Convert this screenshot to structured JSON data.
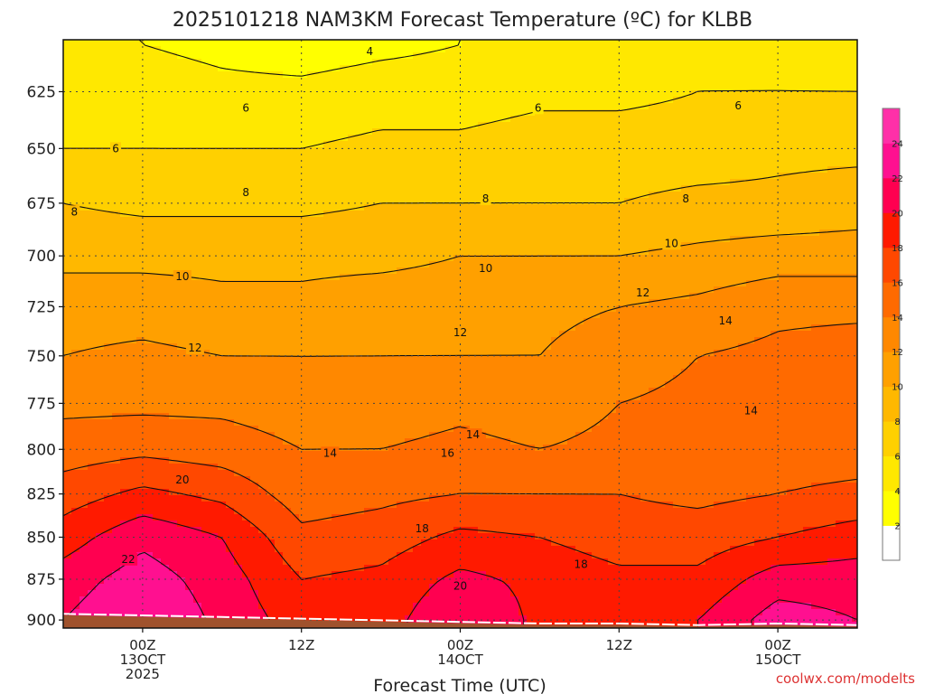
{
  "chart_data": {
    "type": "heatmap",
    "title": "2025101218 NAM3KM Forecast Temperature (ºC) for KLBB",
    "xlabel": "Forecast Time (UTC)",
    "ylabel": "",
    "credit": "coolwx.com/modelts",
    "y_axis": {
      "scale": "pressure",
      "inverted": true,
      "range": [
        905,
        603
      ]
    },
    "x_range_hours": [
      -5,
      45
    ],
    "y_ticks": [
      {
        "value": 625,
        "label": "625"
      },
      {
        "value": 650,
        "label": "650"
      },
      {
        "value": 675,
        "label": "675"
      },
      {
        "value": 700,
        "label": "700"
      },
      {
        "value": 725,
        "label": "725"
      },
      {
        "value": 750,
        "label": "750"
      },
      {
        "value": 775,
        "label": "775"
      },
      {
        "value": 800,
        "label": "800"
      },
      {
        "value": 825,
        "label": "825"
      },
      {
        "value": 850,
        "label": "850"
      },
      {
        "value": 875,
        "label": "875"
      },
      {
        "value": 900,
        "label": "900"
      }
    ],
    "x_ticks": [
      {
        "value": 0,
        "lines": [
          "00Z",
          "13OCT",
          "2025"
        ]
      },
      {
        "value": 10,
        "lines": [
          "12Z"
        ]
      },
      {
        "value": 20,
        "lines": [
          "00Z",
          "14OCT"
        ]
      },
      {
        "value": 30,
        "lines": [
          "12Z"
        ]
      },
      {
        "value": 40,
        "lines": [
          "00Z",
          "15OCT"
        ]
      }
    ],
    "grid": true,
    "colorbar": {
      "levels": [
        2,
        4,
        6,
        8,
        10,
        12,
        14,
        16,
        18,
        20,
        22,
        24
      ],
      "labels": [
        "2",
        "4",
        "6",
        "8",
        "10",
        "12",
        "14",
        "16",
        "18",
        "20",
        "22",
        "24"
      ],
      "colors": [
        "#ffffff",
        "#ffff00",
        "#ffe800",
        "#ffd000",
        "#ffb800",
        "#ffa000",
        "#ff8800",
        "#ff6a00",
        "#ff4800",
        "#ff1a00",
        "#ff0050",
        "#ff1090",
        "#ff30a8"
      ]
    },
    "temperature_profile": {
      "times": [
        -5,
        0,
        5,
        10,
        15,
        20,
        25,
        30,
        35,
        40,
        45
      ],
      "pressures": [
        605,
        625,
        650,
        675,
        700,
        725,
        750,
        775,
        800,
        825,
        850,
        875,
        900
      ],
      "values": [
        [
          4.0,
          4.0,
          3.5,
          3.0,
          3.5,
          4.0,
          4.5,
          5.0,
          5.5,
          5.5,
          5.0
        ],
        [
          5.0,
          5.0,
          4.5,
          4.5,
          5.0,
          5.0,
          5.5,
          5.5,
          6.0,
          6.0,
          6.0
        ],
        [
          6.0,
          6.0,
          6.0,
          6.0,
          6.5,
          6.5,
          7.0,
          7.0,
          7.0,
          7.5,
          7.5
        ],
        [
          8.0,
          7.5,
          7.5,
          7.5,
          8.0,
          8.0,
          8.0,
          8.0,
          8.5,
          8.5,
          9.0
        ],
        [
          9.5,
          9.5,
          9.5,
          9.5,
          9.5,
          10.0,
          10.0,
          10.0,
          10.5,
          11.0,
          11.0
        ],
        [
          11.0,
          11.0,
          10.5,
          10.5,
          11.0,
          11.0,
          11.5,
          12.0,
          12.5,
          13.5,
          13.5
        ],
        [
          12.0,
          12.5,
          12.0,
          12.0,
          12.0,
          12.0,
          12.0,
          13.0,
          14.0,
          14.5,
          15.0
        ],
        [
          13.5,
          13.5,
          13.5,
          13.0,
          13.0,
          13.5,
          13.0,
          14.0,
          14.5,
          15.0,
          15.5
        ],
        [
          15.0,
          15.5,
          15.0,
          14.0,
          14.0,
          14.5,
          14.0,
          14.5,
          15.0,
          15.0,
          15.0
        ],
        [
          17.0,
          18.5,
          17.5,
          15.0,
          15.5,
          16.0,
          16.0,
          16.0,
          15.5,
          16.0,
          16.5
        ],
        [
          19.0,
          21.5,
          20.0,
          16.5,
          17.0,
          18.5,
          18.0,
          17.0,
          17.0,
          18.0,
          19.0
        ],
        [
          21.0,
          23.0,
          21.0,
          18.0,
          18.5,
          20.5,
          19.5,
          18.5,
          18.5,
          21.0,
          21.0
        ],
        [
          22.0,
          24.0,
          21.5,
          19.0,
          19.0,
          22.0,
          19.5,
          19.0,
          20.0,
          23.0,
          22.0
        ]
      ]
    },
    "terrain_surface": {
      "times": [
        -5,
        0,
        5,
        10,
        15,
        20,
        25,
        30,
        35,
        40,
        45
      ],
      "pressures": [
        897,
        898,
        899,
        900,
        901,
        902,
        903,
        903,
        904,
        903,
        904
      ]
    },
    "contour_labels": [
      {
        "text": "4",
        "t": 14.3,
        "p": 608
      },
      {
        "text": "6",
        "t": 6.5,
        "p": 632
      },
      {
        "text": "6",
        "t": -1.7,
        "p": 650
      },
      {
        "text": "6",
        "t": 24.9,
        "p": 632
      },
      {
        "text": "6",
        "t": 37.5,
        "p": 631
      },
      {
        "text": "8",
        "t": 6.5,
        "p": 670
      },
      {
        "text": "8",
        "t": -4.3,
        "p": 679
      },
      {
        "text": "8",
        "t": 21.6,
        "p": 673
      },
      {
        "text": "8",
        "t": 34.2,
        "p": 673
      },
      {
        "text": "10",
        "t": 2.5,
        "p": 710
      },
      {
        "text": "10",
        "t": 21.6,
        "p": 706
      },
      {
        "text": "10",
        "t": 33.3,
        "p": 694
      },
      {
        "text": "12",
        "t": 3.3,
        "p": 746
      },
      {
        "text": "12",
        "t": 20.0,
        "p": 738
      },
      {
        "text": "12",
        "t": 31.5,
        "p": 718
      },
      {
        "text": "14",
        "t": 11.8,
        "p": 802
      },
      {
        "text": "14",
        "t": 20.8,
        "p": 792
      },
      {
        "text": "14",
        "t": 36.7,
        "p": 732
      },
      {
        "text": "14",
        "t": 38.3,
        "p": 779
      },
      {
        "text": "16",
        "t": 19.2,
        "p": 802
      },
      {
        "text": "18",
        "t": 17.6,
        "p": 845
      },
      {
        "text": "18",
        "t": 27.6,
        "p": 866
      },
      {
        "text": "20",
        "t": 2.5,
        "p": 817
      },
      {
        "text": "20",
        "t": 20.0,
        "p": 879
      },
      {
        "text": "22",
        "t": -0.9,
        "p": 863
      }
    ]
  }
}
